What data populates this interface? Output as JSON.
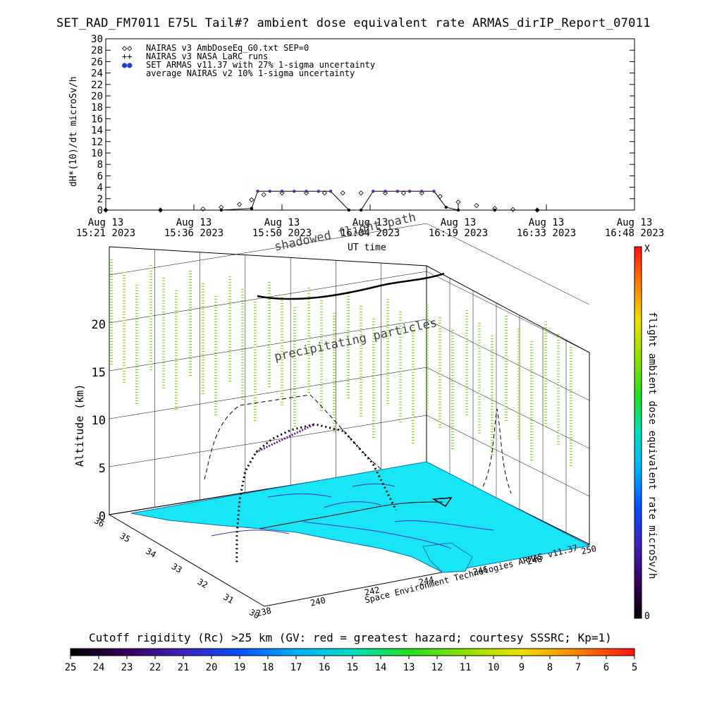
{
  "title": "SET_RAD_FM7011  E75L Tail#? ambient dose equivalent rate ARMAS_dirIP_Report_07011",
  "top_plot": {
    "ylabel": "dH*(10)/dt microSv/h",
    "xlabel": "UT time",
    "y_ticks": [
      "0",
      "2",
      "4",
      "6",
      "8",
      "10",
      "12",
      "14",
      "16",
      "18",
      "20",
      "22",
      "24",
      "26",
      "28",
      "30"
    ],
    "x_ticks": [
      {
        "line1": "Aug 13",
        "line2": "15:21 2023"
      },
      {
        "line1": "Aug 13",
        "line2": "15:36 2023"
      },
      {
        "line1": "Aug 13",
        "line2": "15:50 2023"
      },
      {
        "line1": "Aug 13",
        "line2": "16:04 2023"
      },
      {
        "line1": "Aug 13",
        "line2": "16:19 2023"
      },
      {
        "line1": "Aug 13",
        "line2": "16:33 2023"
      },
      {
        "line1": "Aug 13",
        "line2": "16:48 2023"
      }
    ],
    "legend": [
      {
        "symbol": "◇◇",
        "text": "NAIRAS v3 AmbDoseEq_G0.txt SEP=0"
      },
      {
        "symbol": "++",
        "text": "NAIRAS v3 NASA LaRC runs"
      },
      {
        "symbol": "●●",
        "text": "SET ARMAS v11.37 with 27% 1-sigma uncertainty",
        "color": "#1f3fcf"
      },
      {
        "symbol": "",
        "text": "average NAIRAS v2 10% 1-sigma uncertainty"
      }
    ]
  },
  "chart_data": [
    {
      "type": "scatter",
      "title": "SET_RAD_FM7011  E75L Tail#? ambient dose equivalent rate ARMAS_dirIP_Report_07011",
      "xlabel": "UT time",
      "ylabel": "dH*(10)/dt microSv/h",
      "xlim": [
        "15:21",
        "16:48"
      ],
      "ylim": [
        0,
        30
      ],
      "grid": false,
      "legend_position": "top-left",
      "series": [
        {
          "name": "NAIRAS v3 AmbDoseEq_G0.txt SEP=0",
          "x": [
            "15:21",
            "15:30",
            "15:37",
            "15:40",
            "15:43",
            "15:45",
            "15:47",
            "15:50",
            "15:54",
            "15:57",
            "16:00",
            "16:03",
            "16:07",
            "16:10",
            "16:13",
            "16:16",
            "16:19",
            "16:22",
            "16:25",
            "16:28",
            "16:32"
          ],
          "y": [
            0,
            0,
            0.2,
            0.5,
            1,
            1.8,
            2.7,
            3,
            3,
            3,
            3,
            3,
            3,
            3,
            3,
            2.4,
            1.4,
            0.8,
            0.3,
            0.1,
            0
          ]
        },
        {
          "name": "SET ARMAS v11.37 with 27% 1-sigma uncertainty",
          "x": [
            "15:21",
            "15:30",
            "15:40",
            "15:45",
            "15:46",
            "15:48",
            "15:50",
            "15:52",
            "15:54",
            "15:56",
            "15:58",
            "16:01",
            "16:03",
            "16:05",
            "16:07",
            "16:09",
            "16:11",
            "16:13",
            "16:15",
            "16:17",
            "16:19",
            "16:25",
            "16:32"
          ],
          "y": [
            0,
            0,
            0,
            0.3,
            3.3,
            3.3,
            3.3,
            3.3,
            3.3,
            3.3,
            3.3,
            0,
            0,
            3.3,
            3.3,
            3.3,
            3.3,
            3.3,
            3.3,
            0.5,
            0,
            0,
            0
          ]
        }
      ]
    },
    {
      "type": "scatter",
      "title": "",
      "zlabel": "Altitude (km)",
      "z_ticks": [
        "0",
        "5",
        "10",
        "15",
        "20"
      ],
      "lat_ticks": [
        "30",
        "31",
        "32",
        "33",
        "34",
        "35",
        "36"
      ],
      "lon_ticks": [
        "238",
        "240",
        "242",
        "244",
        "246",
        "248",
        "250"
      ],
      "annotations": [
        "precipitating particles",
        "shadowed flight path"
      ],
      "flight_path": {
        "lon": [
          239.4,
          239.6,
          240.0,
          240.6,
          241.4,
          242.4,
          243.4,
          244.4,
          245.3,
          246.0,
          246.5
        ],
        "lat": [
          32.5,
          32.7,
          33.0,
          33.4,
          33.8,
          34.2,
          34.5,
          34.6,
          34.4,
          34.0,
          33.6
        ],
        "alt_km": [
          0,
          2.5,
          5.5,
          7.5,
          8.5,
          8.8,
          8.8,
          8.8,
          8.0,
          5.0,
          0.5
        ]
      }
    },
    {
      "type": "heatmap",
      "title": "Cutoff rigidity (Rc) >25 km (GV: red = greatest hazard; courtesy SSSRC; Kp=1)",
      "colorbar_ticks": [
        "25",
        "24",
        "23",
        "22",
        "21",
        "20",
        "19",
        "18",
        "17",
        "16",
        "15",
        "14",
        "13",
        "12",
        "11",
        "10",
        "9",
        "8",
        "7",
        "6",
        "5"
      ],
      "dominant_value_GV": 17,
      "dominant_color": "#18e6f5"
    }
  ],
  "colorbar_right": {
    "label": "flight ambient dose equivalent rate microSv/h",
    "top": "X",
    "bottom": "0"
  },
  "altitude_axis": {
    "label": "Altitude (km)"
  },
  "annotations": {
    "precipitating": "precipitating particles",
    "shadowed": "shadowed flight path"
  },
  "credit": "Space Environment Technologies ARMAS v11.37",
  "rc_title": "Cutoff rigidity (Rc) >25 km (GV: red = greatest hazard; courtesy SSSRC; Kp=1)",
  "colors": {
    "ocean": "#18e6f5",
    "armas": "#5b1f8f",
    "precip": "#7fe02a",
    "track": "#000000"
  }
}
